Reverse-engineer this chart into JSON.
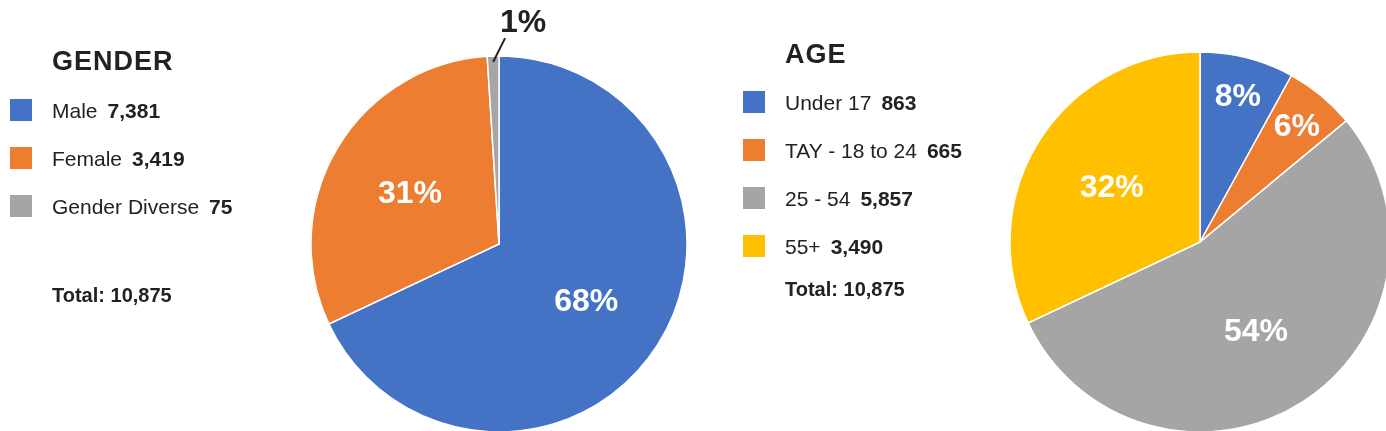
{
  "chart_data": [
    {
      "type": "pie",
      "title": "GENDER",
      "categories": [
        "Male 7,381",
        "Female 3,419",
        "Gender Diverse 75"
      ],
      "values": [
        68,
        31,
        1
      ],
      "colors": [
        "#4472c4",
        "#ed7d31",
        "#a5a5a5"
      ],
      "value_labels": [
        "68%",
        "31%",
        "1%"
      ],
      "annotations": [
        "Total: 10,875"
      ],
      "legend": "left"
    },
    {
      "type": "pie",
      "title": "AGE",
      "categories": [
        "Under 17 863",
        "TAY - 18 to 24 665",
        "25 - 54 5,857",
        "55+ 3,490"
      ],
      "values": [
        8,
        6,
        54,
        32
      ],
      "colors": [
        "#4472c4",
        "#ed7d31",
        "#a5a5a5",
        "#ffc000"
      ],
      "value_labels": [
        "8%",
        "6%",
        "54%",
        "32%"
      ],
      "annotations": [
        "Total: 10,875"
      ],
      "legend": "left"
    }
  ]
}
